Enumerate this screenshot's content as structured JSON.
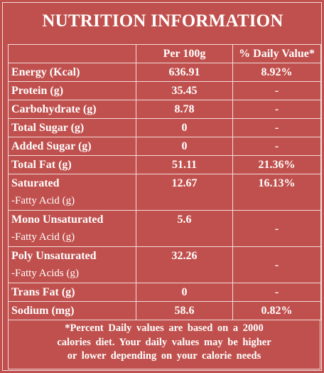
{
  "title": "NUTRITION INFORMATION",
  "headers": {
    "per100": "Per 100g",
    "daily": "% Daily Value*"
  },
  "rows": [
    {
      "label": "Energy (Kcal)",
      "sub": "",
      "value": "636.91",
      "daily": "8.92%"
    },
    {
      "label": "Protein (g)",
      "sub": "",
      "value": "35.45",
      "daily": "-"
    },
    {
      "label": "Carbohydrate (g)",
      "sub": "",
      "value": "8.78",
      "daily": "-"
    },
    {
      "label": "Total Sugar (g)",
      "sub": "",
      "value": "0",
      "daily": "-"
    },
    {
      "label": "Added Sugar (g)",
      "sub": "",
      "value": "0",
      "daily": "-"
    },
    {
      "label": "Total Fat (g)",
      "sub": "",
      "value": "51.11",
      "daily": "21.36%"
    },
    {
      "label": "Saturated",
      "sub": "-Fatty Acid (g)",
      "value": "12.67",
      "daily": "16.13%"
    },
    {
      "label": "Mono Unsaturated",
      "sub": "-Fatty Acid (g)",
      "value": "5.6",
      "daily": "-"
    },
    {
      "label": "Poly Unsaturated",
      "sub": "-Fatty Acids (g)",
      "value": "32.26",
      "daily": "-"
    },
    {
      "label": "Trans Fat (g)",
      "sub": "",
      "value": "0",
      "daily": "-"
    },
    {
      "label": "Sodium (mg)",
      "sub": "",
      "value": "58.6",
      "daily": "0.82%"
    }
  ],
  "footnote": {
    "line1": "*Percent Daily values are based on a 2000",
    "line2": "calories diet. Your daily values may be higher",
    "line3": "or lower depending on your calorie needs"
  }
}
